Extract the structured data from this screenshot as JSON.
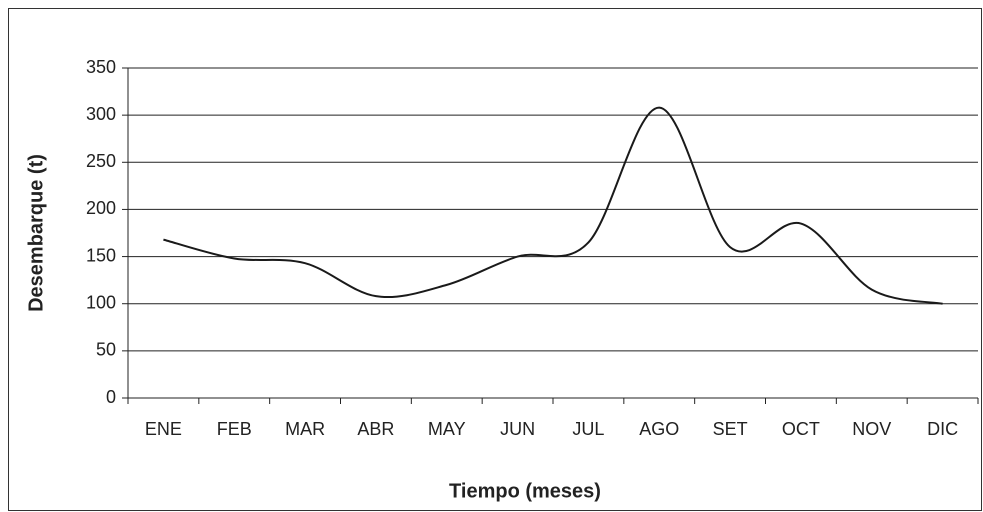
{
  "chart_data": {
    "type": "line",
    "x_label": "Tiempo (meses)",
    "y_label": "Desembarque (t)",
    "categories": [
      "ENE",
      "FEB",
      "MAR",
      "ABR",
      "MAY",
      "JUN",
      "JUL",
      "AGO",
      "SET",
      "OCT",
      "NOV",
      "DIC"
    ],
    "values": [
      168,
      148,
      143,
      108,
      120,
      150,
      165,
      308,
      160,
      185,
      115,
      100
    ],
    "color": "#1a1a1a",
    "ylim": [
      0,
      350
    ],
    "yticks": [
      0,
      50,
      100,
      150,
      200,
      250,
      300,
      350
    ],
    "grid": true
  }
}
